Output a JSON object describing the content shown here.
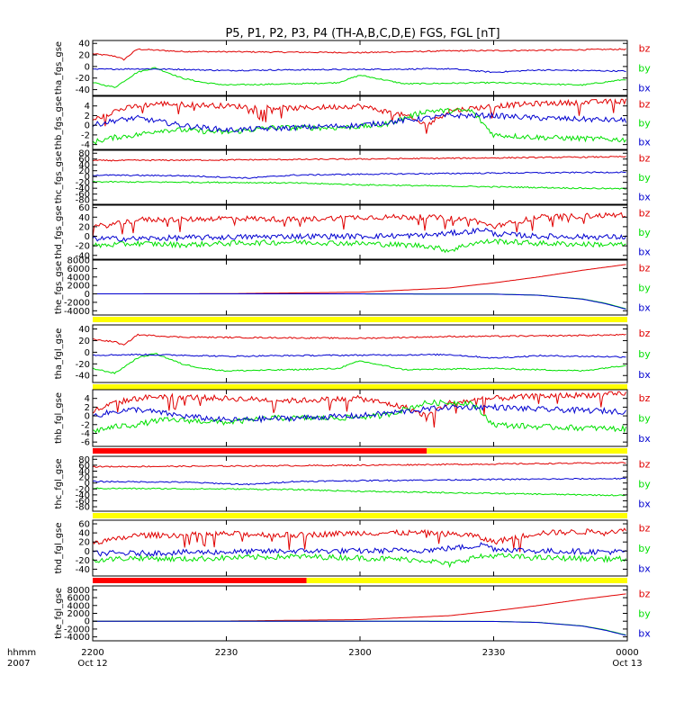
{
  "title": "P5, P1, P2, P3, P4 (TH-A,B,C,D,E) FGS, FGL [nT]",
  "colors": {
    "bz": "#e00000",
    "by": "#00e000",
    "bx": "#0000d0",
    "bar_yellow": "#ffff00",
    "bar_red": "#ff0000"
  },
  "time_axis": {
    "corner_label_1": "hhmm",
    "corner_label_2": "2007",
    "range": [
      "2200",
      "0000"
    ],
    "ticks": [
      {
        "t": 0,
        "hhmm": "2200",
        "date": "Oct 12"
      },
      {
        "t": 30,
        "hhmm": "2230",
        "date": ""
      },
      {
        "t": 60,
        "hhmm": "2300",
        "date": ""
      },
      {
        "t": 90,
        "hhmm": "2330",
        "date": ""
      },
      {
        "t": 120,
        "hhmm": "0000",
        "date": "Oct 13"
      }
    ]
  },
  "chart_data": [
    {
      "type": "line",
      "ylabel": "tha_fgs_gse",
      "ylim": [
        -50,
        45
      ],
      "yticks": [
        40,
        20,
        0,
        -20,
        -40
      ],
      "legend": [
        "bz",
        "by",
        "bx"
      ],
      "series": [
        {
          "name": "bz",
          "t": [
            0,
            5,
            7,
            10,
            20,
            40,
            60,
            80,
            100,
            120
          ],
          "values": [
            22,
            18,
            12,
            30,
            26,
            25,
            24,
            27,
            28,
            30
          ]
        },
        {
          "name": "by",
          "t": [
            0,
            5,
            10,
            14,
            20,
            25,
            30,
            45,
            55,
            60,
            70,
            90,
            100,
            110,
            120
          ],
          "values": [
            -28,
            -36,
            -10,
            -2,
            -20,
            -28,
            -32,
            -30,
            -28,
            -15,
            -30,
            -28,
            -30,
            -32,
            -22
          ]
        },
        {
          "name": "bx",
          "t": [
            0,
            10,
            20,
            30,
            40,
            60,
            80,
            90,
            100,
            120
          ],
          "values": [
            -5,
            -4,
            -5,
            -7,
            -6,
            -5,
            -4,
            -10,
            -6,
            -8
          ]
        }
      ]
    },
    {
      "type": "line",
      "ylabel": "thb_fgs_gse",
      "ylim": [
        -5,
        6
      ],
      "yticks": [
        4,
        2,
        0,
        -2,
        -4
      ],
      "legend": [
        "bz",
        "by",
        "bx"
      ],
      "series": [
        {
          "name": "bz",
          "t": [
            0,
            5,
            10,
            15,
            30,
            45,
            60,
            65,
            70,
            75,
            80,
            90,
            100,
            120
          ],
          "values": [
            1,
            3,
            4,
            4.5,
            4,
            3.5,
            4,
            3,
            2,
            0,
            3,
            4,
            4.5,
            5
          ]
        },
        {
          "name": "by",
          "t": [
            0,
            5,
            10,
            15,
            20,
            30,
            40,
            55,
            65,
            75,
            85,
            90,
            100,
            120
          ],
          "values": [
            -3.5,
            -2.5,
            -2,
            -1,
            -1,
            -1.5,
            -0.5,
            -0.5,
            0,
            3,
            3,
            -2,
            -2.5,
            -3
          ]
        },
        {
          "name": "bx",
          "t": [
            0,
            5,
            10,
            20,
            30,
            45,
            60,
            70,
            80,
            90,
            100,
            120
          ],
          "values": [
            0,
            1,
            1.5,
            0,
            -1,
            -0.5,
            0,
            1,
            2,
            2,
            1.5,
            1
          ]
        }
      ]
    },
    {
      "type": "line",
      "ylabel": "thc_fgs_gse",
      "ylim": [
        -95,
        90
      ],
      "yticks": [
        80,
        60,
        40,
        20,
        0,
        -20,
        -40,
        -60,
        -80
      ],
      "legend": [
        "bz",
        "by",
        "bx"
      ],
      "series": [
        {
          "name": "bz",
          "t": [
            0,
            30,
            60,
            90,
            120
          ],
          "values": [
            55,
            57,
            60,
            64,
            68
          ]
        },
        {
          "name": "by",
          "t": [
            0,
            30,
            45,
            60,
            90,
            110,
            120
          ],
          "values": [
            -18,
            -20,
            -22,
            -28,
            -35,
            -40,
            -42
          ]
        },
        {
          "name": "bx",
          "t": [
            0,
            20,
            35,
            45,
            60,
            90,
            120
          ],
          "values": [
            5,
            3,
            -5,
            5,
            8,
            12,
            15
          ]
        }
      ]
    },
    {
      "type": "line",
      "ylabel": "thd_fgs_gse",
      "ylim": [
        -48,
        65
      ],
      "yticks": [
        60,
        40,
        20,
        0,
        -20,
        -40
      ],
      "legend": [
        "bz",
        "by",
        "bx"
      ],
      "series": [
        {
          "name": "bz",
          "t": [
            0,
            5,
            10,
            20,
            30,
            45,
            60,
            75,
            85,
            90,
            100,
            120
          ],
          "values": [
            20,
            25,
            35,
            35,
            38,
            35,
            40,
            40,
            35,
            20,
            40,
            45
          ]
        },
        {
          "name": "by",
          "t": [
            0,
            10,
            20,
            30,
            45,
            60,
            75,
            80,
            85,
            90,
            100,
            120
          ],
          "values": [
            -20,
            -15,
            -18,
            -15,
            -12,
            -15,
            -20,
            -30,
            -15,
            -10,
            -15,
            -18
          ]
        },
        {
          "name": "bx",
          "t": [
            0,
            10,
            20,
            30,
            45,
            60,
            75,
            85,
            88,
            90,
            100,
            120
          ],
          "values": [
            -5,
            -5,
            -3,
            -2,
            0,
            0,
            2,
            10,
            15,
            5,
            0,
            -2
          ]
        }
      ]
    },
    {
      "type": "line",
      "ylabel": "the_fgs_gse",
      "ylim": [
        -5000,
        8000
      ],
      "yticks": [
        8000,
        6000,
        4000,
        2000,
        0,
        -2000,
        -4000
      ],
      "legend": [
        "bz",
        "by",
        "bx"
      ],
      "status_bars": [
        {
          "from": 0,
          "to": 120,
          "color": "yellow"
        }
      ],
      "series": [
        {
          "name": "bz",
          "t": [
            0,
            30,
            60,
            80,
            90,
            100,
            110,
            120
          ],
          "values": [
            0,
            50,
            400,
            1400,
            2600,
            4000,
            5600,
            7000
          ]
        },
        {
          "name": "by",
          "t": [
            0,
            60,
            90,
            100,
            110,
            115,
            120
          ],
          "values": [
            0,
            0,
            -50,
            -300,
            -1200,
            -2200,
            -3600
          ]
        },
        {
          "name": "bx",
          "t": [
            0,
            60,
            90,
            100,
            110,
            115,
            120
          ],
          "values": [
            0,
            0,
            -60,
            -320,
            -1250,
            -2300,
            -3700
          ]
        }
      ]
    },
    {
      "type": "line",
      "ylabel": "tha_fgl_gse",
      "ylim": [
        -52,
        47
      ],
      "yticks": [
        40,
        20,
        0,
        -20,
        -40
      ],
      "legend": [
        "bz",
        "by",
        "bx"
      ],
      "status_bars": [
        {
          "from": 0,
          "to": 120,
          "color": "yellow"
        }
      ],
      "series": [
        {
          "name": "bz",
          "t": [
            0,
            5,
            7,
            10,
            20,
            40,
            60,
            80,
            100,
            120
          ],
          "values": [
            22,
            18,
            12,
            30,
            26,
            25,
            24,
            27,
            28,
            30
          ]
        },
        {
          "name": "by",
          "t": [
            0,
            5,
            10,
            14,
            20,
            25,
            30,
            45,
            55,
            60,
            70,
            90,
            100,
            110,
            120
          ],
          "values": [
            -28,
            -36,
            -10,
            -2,
            -20,
            -28,
            -32,
            -30,
            -28,
            -15,
            -30,
            -28,
            -30,
            -32,
            -22
          ]
        },
        {
          "name": "bx",
          "t": [
            0,
            10,
            20,
            30,
            40,
            60,
            80,
            90,
            100,
            120
          ],
          "values": [
            -5,
            -4,
            -5,
            -7,
            -6,
            -5,
            -4,
            -10,
            -6,
            -8
          ]
        }
      ]
    },
    {
      "type": "line",
      "ylabel": "thb_fgl_gse",
      "ylim": [
        -7,
        6
      ],
      "yticks": [
        4,
        2,
        0,
        -2,
        -4,
        -6
      ],
      "legend": [
        "bz",
        "by",
        "bx"
      ],
      "status_bars": [
        {
          "from": 0,
          "to": 75,
          "color": "red"
        },
        {
          "from": 75,
          "to": 120,
          "color": "yellow"
        }
      ],
      "series": [
        {
          "name": "bz",
          "t": [
            0,
            5,
            10,
            15,
            30,
            45,
            60,
            65,
            70,
            75,
            80,
            90,
            100,
            120
          ],
          "values": [
            1,
            3,
            4,
            4.5,
            4,
            3.5,
            4,
            3,
            2,
            0,
            3,
            4,
            4.5,
            5
          ]
        },
        {
          "name": "by",
          "t": [
            0,
            5,
            10,
            15,
            20,
            30,
            40,
            55,
            65,
            75,
            85,
            90,
            100,
            120
          ],
          "values": [
            -3.5,
            -2.5,
            -2,
            -1,
            -1,
            -1.5,
            -0.5,
            -0.5,
            0,
            3,
            3,
            -2,
            -2.5,
            -3
          ]
        },
        {
          "name": "bx",
          "t": [
            0,
            5,
            10,
            20,
            30,
            45,
            60,
            70,
            80,
            90,
            100,
            120
          ],
          "values": [
            0,
            1,
            1.5,
            0,
            -1,
            -0.5,
            0,
            1,
            2,
            2,
            1.5,
            1
          ]
        }
      ]
    },
    {
      "type": "line",
      "ylabel": "thc_fgl_gse",
      "ylim": [
        -95,
        90
      ],
      "yticks": [
        80,
        60,
        40,
        20,
        0,
        -20,
        -40,
        -60,
        -80
      ],
      "legend": [
        "bz",
        "by",
        "bx"
      ],
      "status_bars": [
        {
          "from": 0,
          "to": 120,
          "color": "yellow"
        }
      ],
      "series": [
        {
          "name": "bz",
          "t": [
            0,
            30,
            60,
            90,
            120
          ],
          "values": [
            55,
            57,
            60,
            64,
            68
          ]
        },
        {
          "name": "by",
          "t": [
            0,
            30,
            45,
            60,
            90,
            110,
            120
          ],
          "values": [
            -18,
            -20,
            -22,
            -28,
            -35,
            -40,
            -42
          ]
        },
        {
          "name": "bx",
          "t": [
            0,
            20,
            35,
            45,
            60,
            90,
            120
          ],
          "values": [
            5,
            3,
            -5,
            5,
            8,
            12,
            15
          ]
        }
      ]
    },
    {
      "type": "line",
      "ylabel": "thd_fgl_gse",
      "ylim": [
        -55,
        68
      ],
      "yticks": [
        60,
        40,
        20,
        0,
        -20,
        -40
      ],
      "legend": [
        "bz",
        "by",
        "bx"
      ],
      "status_bars": [
        {
          "from": 0,
          "to": 48,
          "color": "red"
        },
        {
          "from": 48,
          "to": 120,
          "color": "yellow"
        }
      ],
      "series": [
        {
          "name": "bz",
          "t": [
            0,
            5,
            10,
            20,
            30,
            45,
            60,
            75,
            85,
            90,
            100,
            120
          ],
          "values": [
            20,
            25,
            35,
            35,
            38,
            35,
            40,
            40,
            35,
            20,
            40,
            45
          ]
        },
        {
          "name": "by",
          "t": [
            0,
            10,
            20,
            30,
            45,
            60,
            75,
            80,
            85,
            90,
            100,
            120
          ],
          "values": [
            -20,
            -15,
            -18,
            -15,
            -12,
            -15,
            -20,
            -30,
            -15,
            -10,
            -15,
            -18
          ]
        },
        {
          "name": "bx",
          "t": [
            0,
            10,
            20,
            30,
            45,
            60,
            75,
            85,
            88,
            90,
            100,
            120
          ],
          "values": [
            -5,
            -5,
            -3,
            -2,
            0,
            0,
            2,
            10,
            15,
            5,
            0,
            -2
          ]
        }
      ]
    },
    {
      "type": "line",
      "ylabel": "the_fgl_gse",
      "ylim": [
        -5000,
        9000
      ],
      "yticks": [
        8000,
        6000,
        4000,
        2000,
        0,
        -2000,
        -4000
      ],
      "legend": [
        "bz",
        "by",
        "bx"
      ],
      "series": [
        {
          "name": "bz",
          "t": [
            0,
            30,
            60,
            80,
            90,
            100,
            110,
            120
          ],
          "values": [
            0,
            50,
            400,
            1400,
            2600,
            4000,
            5600,
            7000
          ]
        },
        {
          "name": "by",
          "t": [
            0,
            60,
            90,
            100,
            110,
            115,
            120
          ],
          "values": [
            0,
            0,
            -50,
            -300,
            -1200,
            -2200,
            -3600
          ]
        },
        {
          "name": "bx",
          "t": [
            0,
            60,
            90,
            100,
            110,
            115,
            120
          ],
          "values": [
            0,
            0,
            -60,
            -320,
            -1250,
            -2300,
            -3700
          ]
        }
      ]
    }
  ]
}
